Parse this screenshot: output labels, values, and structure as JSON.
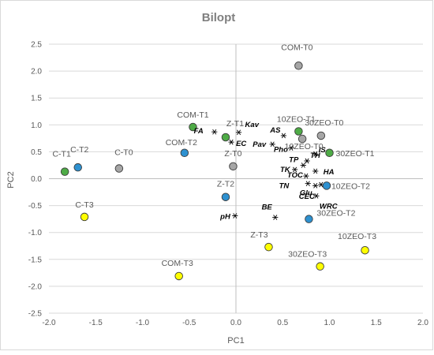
{
  "chart_data": {
    "type": "scatter",
    "title": "Bilopt",
    "xlabel": "PC1",
    "ylabel": "PC2",
    "xlim": [
      -2.0,
      2.0
    ],
    "ylim": [
      -2.5,
      2.5
    ],
    "xticks": [
      "-2.0",
      "-1.5",
      "-1.0",
      "-0.5",
      "0.0",
      "0.5",
      "1.0",
      "1.5",
      "2.0"
    ],
    "yticks": [
      "2.5",
      "2.0",
      "1.5",
      "1.0",
      "0.5",
      "0.0",
      "-0.5",
      "-1.0",
      "-1.5",
      "-2.0",
      "-2.5"
    ],
    "grid": "horizontal",
    "colors": {
      "T0": "#a6a6a6",
      "T1": "#4eab46",
      "T2": "#2e91d0",
      "T3": "#ffff00",
      "variables": "#000000"
    },
    "samples": [
      {
        "label": "C-T0",
        "group": "T0",
        "x": -1.25,
        "y": 0.19
      },
      {
        "label": "C-T1",
        "group": "T1",
        "x": -1.83,
        "y": 0.13
      },
      {
        "label": "C-T2",
        "group": "T2",
        "x": -1.69,
        "y": 0.21
      },
      {
        "label": "C-T3",
        "group": "T3",
        "x": -1.62,
        "y": -0.71
      },
      {
        "label": "COM-T0",
        "group": "T0",
        "x": 0.67,
        "y": 2.1
      },
      {
        "label": "COM-T1",
        "group": "T1",
        "x": -0.46,
        "y": 0.96
      },
      {
        "label": "COM-T2",
        "group": "T2",
        "x": -0.55,
        "y": 0.48
      },
      {
        "label": "COM-T3",
        "group": "T3",
        "x": -0.61,
        "y": -1.81
      },
      {
        "label": "Z-T0",
        "group": "T0",
        "x": -0.03,
        "y": 0.23
      },
      {
        "label": "Z-T1",
        "group": "T1",
        "x": -0.11,
        "y": 0.77
      },
      {
        "label": "Z-T2",
        "group": "T2",
        "x": -0.11,
        "y": -0.34
      },
      {
        "label": "Z-T3",
        "group": "T3",
        "x": 0.35,
        "y": -1.27
      },
      {
        "label": "10ZEO-T0",
        "group": "T0",
        "x": 0.71,
        "y": 0.74
      },
      {
        "label": "10ZEO-T1",
        "group": "T1",
        "x": 0.67,
        "y": 0.88
      },
      {
        "label": "10ZEO-T2",
        "group": "T2",
        "x": 0.97,
        "y": -0.13
      },
      {
        "label": "10ZEO-T3",
        "group": "T3",
        "x": 1.38,
        "y": -1.33
      },
      {
        "label": "30ZEO-T0",
        "group": "T0",
        "x": 0.91,
        "y": 0.8
      },
      {
        "label": "30ZEO-T1",
        "group": "T1",
        "x": 1.0,
        "y": 0.48
      },
      {
        "label": "30ZEO-T2",
        "group": "T2",
        "x": 0.78,
        "y": -0.75
      },
      {
        "label": "30ZEO-T3",
        "group": "T3",
        "x": 0.9,
        "y": -1.63
      }
    ],
    "variables": [
      {
        "label": "Kav",
        "x": 0.03,
        "y": 0.86
      },
      {
        "label": "FA",
        "x": -0.23,
        "y": 0.87
      },
      {
        "label": "EC",
        "x": -0.05,
        "y": 0.68
      },
      {
        "label": "Pav",
        "x": 0.39,
        "y": 0.64
      },
      {
        "label": "AS",
        "x": 0.51,
        "y": 0.8
      },
      {
        "label": "Pho",
        "x": 0.59,
        "y": 0.57
      },
      {
        "label": "TP",
        "x": 0.72,
        "y": 0.25
      },
      {
        "label": "TH",
        "x": 0.76,
        "y": 0.33
      },
      {
        "label": "IS",
        "x": 0.85,
        "y": 0.46
      },
      {
        "label": "TK",
        "x": 0.63,
        "y": 0.17
      },
      {
        "label": "HA",
        "x": 0.85,
        "y": 0.14
      },
      {
        "label": "TOC",
        "x": 0.75,
        "y": 0.05
      },
      {
        "label": "TN",
        "x": 0.77,
        "y": -0.09
      },
      {
        "label": "Glu",
        "x": 0.85,
        "y": -0.13
      },
      {
        "label": "CEC",
        "x": 0.91,
        "y": -0.11
      },
      {
        "label": "WRC",
        "x": 0.86,
        "y": -0.32
      },
      {
        "label": "BE",
        "x": 0.42,
        "y": -0.72
      },
      {
        "label": "pH",
        "x": -0.01,
        "y": -0.69
      }
    ]
  }
}
